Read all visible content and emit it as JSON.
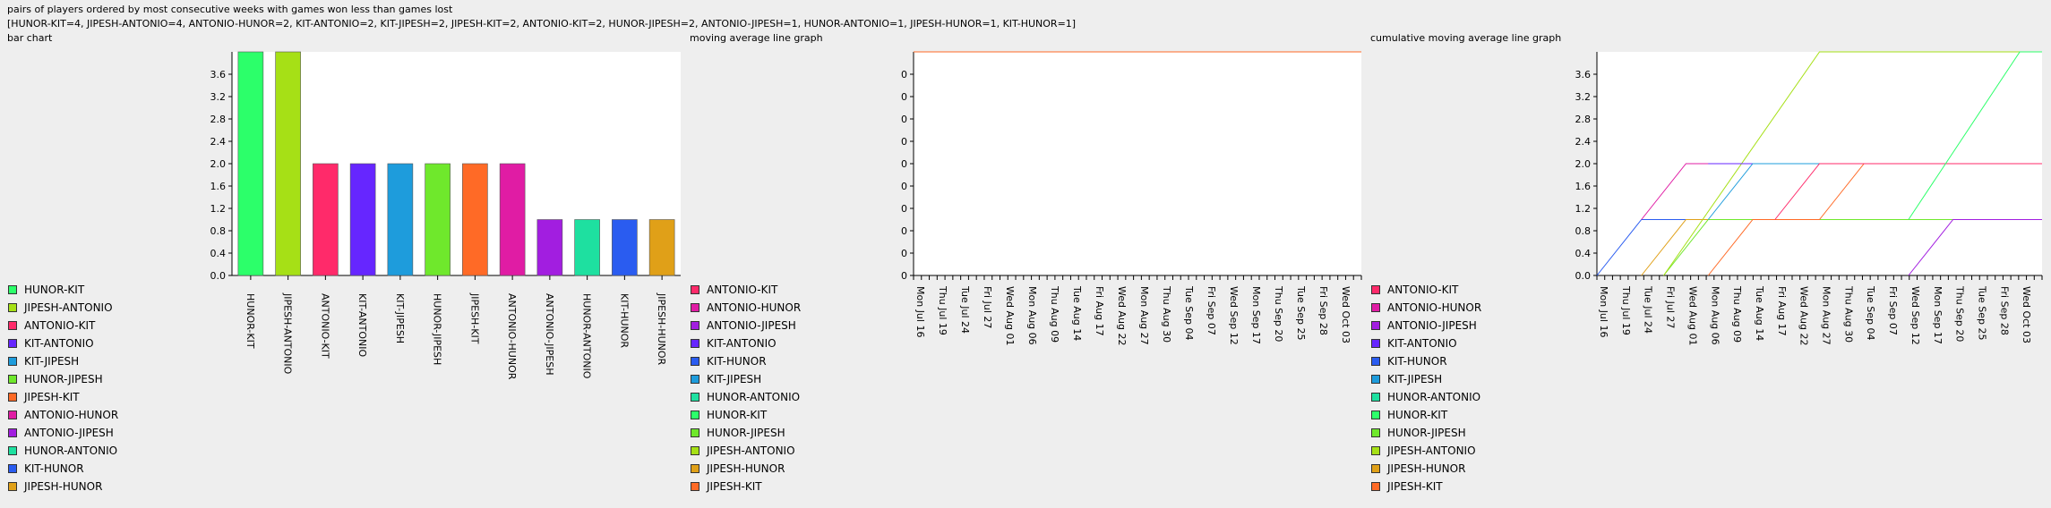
{
  "page": {
    "title_line": "pairs of players ordered by most consecutive weeks with games won less than games lost",
    "summary_line": "[HUNOR-KIT=4, JIPESH-ANTONIO=4, ANTONIO-HUNOR=2, KIT-ANTONIO=2, KIT-JIPESH=2, JIPESH-KIT=2, ANTONIO-KIT=2, HUNOR-JIPESH=2, ANTONIO-JIPESH=1, HUNOR-ANTONIO=1, JIPESH-HUNOR=1, KIT-HUNOR=1]"
  },
  "colors": {
    "HUNOR-KIT": "#2cff6a",
    "JIPESH-ANTONIO": "#a6e016",
    "ANTONIO-KIT": "#ff2a6a",
    "KIT-ANTONIO": "#6626ff",
    "KIT-JIPESH": "#1e9cdc",
    "HUNOR-JIPESH": "#6fe82c",
    "JIPESH-KIT": "#ff6a26",
    "ANTONIO-HUNOR": "#e01ca4",
    "ANTONIO-JIPESH": "#a21ee0",
    "HUNOR-ANTONIO": "#1ee0a0",
    "KIT-HUNOR": "#2a5cf0",
    "JIPESH-HUNOR": "#e0a018"
  },
  "chart_data": [
    {
      "type": "bar",
      "title": "bar chart",
      "categories": [
        "HUNOR-KIT",
        "JIPESH-ANTONIO",
        "ANTONIO-KIT",
        "KIT-ANTONIO",
        "KIT-JIPESH",
        "HUNOR-JIPESH",
        "JIPESH-KIT",
        "ANTONIO-HUNOR",
        "ANTONIO-JIPESH",
        "HUNOR-ANTONIO",
        "KIT-HUNOR",
        "JIPESH-HUNOR"
      ],
      "values": [
        4,
        4,
        2,
        2,
        2,
        2,
        2,
        2,
        1,
        1,
        1,
        1
      ],
      "ylim": [
        0,
        4.0
      ],
      "yticks": [
        "0.0",
        "0.4",
        "0.8",
        "1.2",
        "1.6",
        "2.0",
        "2.4",
        "2.8",
        "3.2",
        "3.6"
      ],
      "legend": [
        "HUNOR-KIT",
        "JIPESH-ANTONIO",
        "ANTONIO-KIT",
        "KIT-ANTONIO",
        "KIT-JIPESH",
        "HUNOR-JIPESH",
        "JIPESH-KIT",
        "ANTONIO-HUNOR",
        "ANTONIO-JIPESH",
        "HUNOR-ANTONIO",
        "KIT-HUNOR",
        "JIPESH-HUNOR"
      ]
    },
    {
      "type": "line",
      "title": "moving average line graph",
      "x": [
        "Mon Jul 16",
        "Thu Jul 19",
        "Tue Jul 24",
        "Fri Jul 27",
        "Wed Aug 01",
        "Mon Aug 06",
        "Thu Aug 09",
        "Tue Aug 14",
        "Fri Aug 17",
        "Wed Aug 22",
        "Mon Aug 27",
        "Thu Aug 30",
        "Tue Sep 04",
        "Fri Sep 07",
        "Wed Sep 12",
        "Mon Sep 17",
        "Thu Sep 20",
        "Tue Sep 25",
        "Fri Sep 28",
        "Wed Oct 03"
      ],
      "yticks": [
        "0",
        "0",
        "0",
        "0",
        "0",
        "0",
        "0",
        "0",
        "0",
        "0"
      ],
      "series": [
        {
          "name": "JIPESH-KIT",
          "values": [
            0,
            0,
            0,
            0,
            0,
            0,
            0,
            0,
            0,
            0,
            0,
            0,
            0,
            0,
            0,
            0,
            0,
            0,
            0,
            0
          ]
        }
      ],
      "legend": [
        "ANTONIO-KIT",
        "ANTONIO-HUNOR",
        "ANTONIO-JIPESH",
        "KIT-ANTONIO",
        "KIT-HUNOR",
        "KIT-JIPESH",
        "HUNOR-ANTONIO",
        "HUNOR-KIT",
        "HUNOR-JIPESH",
        "JIPESH-ANTONIO",
        "JIPESH-HUNOR",
        "JIPESH-KIT"
      ]
    },
    {
      "type": "line",
      "title": "cumulative moving average line graph",
      "x": [
        "Mon Jul 16",
        "Thu Jul 19",
        "Tue Jul 24",
        "Fri Jul 27",
        "Wed Aug 01",
        "Mon Aug 06",
        "Thu Aug 09",
        "Tue Aug 14",
        "Fri Aug 17",
        "Wed Aug 22",
        "Mon Aug 27",
        "Thu Aug 30",
        "Tue Sep 04",
        "Fri Sep 07",
        "Wed Sep 12",
        "Mon Sep 17",
        "Thu Sep 20",
        "Tue Sep 25",
        "Fri Sep 28",
        "Wed Oct 03"
      ],
      "ylim": [
        0,
        4.0
      ],
      "yticks": [
        "0.0",
        "0.4",
        "0.8",
        "1.2",
        "1.6",
        "2.0",
        "2.4",
        "2.8",
        "3.2",
        "3.6"
      ],
      "series": [
        {
          "name": "KIT-HUNOR",
          "points": [
            [
              0,
              0
            ],
            [
              2,
              1
            ],
            [
              20,
              1
            ]
          ]
        },
        {
          "name": "JIPESH-HUNOR",
          "points": [
            [
              2,
              0
            ],
            [
              4,
              1
            ],
            [
              20,
              1
            ]
          ]
        },
        {
          "name": "ANTONIO-HUNOR",
          "points": [
            [
              2,
              1
            ],
            [
              4,
              2
            ],
            [
              20,
              2
            ]
          ]
        },
        {
          "name": "HUNOR-JIPESH",
          "points": [
            [
              3,
              0
            ],
            [
              5,
              1
            ],
            [
              20,
              1
            ]
          ]
        },
        {
          "name": "JIPESH-ANTONIO",
          "points": [
            [
              3,
              0
            ],
            [
              10,
              4
            ],
            [
              20,
              4
            ]
          ]
        },
        {
          "name": "KIT-ANTONIO",
          "points": [
            [
              5,
              2
            ],
            [
              20,
              2
            ]
          ]
        },
        {
          "name": "KIT-JIPESH",
          "points": [
            [
              5,
              1
            ],
            [
              7,
              2
            ],
            [
              20,
              2
            ]
          ]
        },
        {
          "name": "JIPESH-KIT",
          "points": [
            [
              5,
              0
            ],
            [
              7,
              1
            ],
            [
              10,
              1
            ],
            [
              12,
              2
            ],
            [
              20,
              2
            ]
          ]
        },
        {
          "name": "ANTONIO-KIT",
          "points": [
            [
              8,
              1
            ],
            [
              10,
              2
            ],
            [
              20,
              2
            ]
          ]
        },
        {
          "name": "ANTONIO-JIPESH",
          "points": [
            [
              14,
              0
            ],
            [
              16,
              1
            ],
            [
              20,
              1
            ]
          ]
        },
        {
          "name": "HUNOR-KIT",
          "points": [
            [
              14,
              1
            ],
            [
              19,
              4
            ],
            [
              20,
              4
            ]
          ]
        }
      ],
      "legend": [
        "ANTONIO-KIT",
        "ANTONIO-HUNOR",
        "ANTONIO-JIPESH",
        "KIT-ANTONIO",
        "KIT-HUNOR",
        "KIT-JIPESH",
        "HUNOR-ANTONIO",
        "HUNOR-KIT",
        "HUNOR-JIPESH",
        "JIPESH-ANTONIO",
        "JIPESH-HUNOR",
        "JIPESH-KIT"
      ]
    }
  ]
}
